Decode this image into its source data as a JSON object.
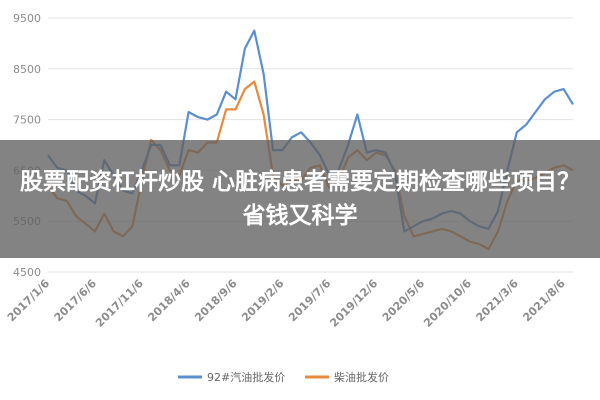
{
  "overlay": {
    "title": "股票配资杠杆炒股 心脏病患者需要定期检查哪些项目？省钱又科学"
  },
  "colors": {
    "series_92": "#5b8fd0",
    "series_diesel": "#e88a3c",
    "grid": "#e3e3e3",
    "axis_text": "#8c8c8c"
  },
  "chart_data": {
    "type": "line",
    "title": "",
    "xlabel": "",
    "ylabel": "",
    "ylim": [
      4500,
      9500
    ],
    "yticks": [
      4500,
      5500,
      6500,
      7500,
      8500,
      9500
    ],
    "ytick_labels": [
      "4500",
      "5500",
      "6500",
      "7500",
      "8500",
      "9500"
    ],
    "xtick_labels": [
      "2017/1/6",
      "2017/6/6",
      "2017/11/6",
      "2018/4/6",
      "2018/9/6",
      "2019/2/6",
      "2019/7/6",
      "2019/12/6",
      "2020/5/6",
      "2020/10/6",
      "2021/3/6",
      "2021/8/6"
    ],
    "x": [
      "2017/1/6",
      "2017/2/6",
      "2017/3/6",
      "2017/4/6",
      "2017/5/6",
      "2017/6/6",
      "2017/7/6",
      "2017/8/6",
      "2017/9/6",
      "2017/10/6",
      "2017/11/6",
      "2017/12/6",
      "2018/1/6",
      "2018/2/6",
      "2018/3/6",
      "2018/4/6",
      "2018/5/6",
      "2018/6/6",
      "2018/7/6",
      "2018/8/6",
      "2018/9/6",
      "2018/10/6",
      "2018/11/6",
      "2018/12/6",
      "2019/1/6",
      "2019/2/6",
      "2019/3/6",
      "2019/4/6",
      "2019/5/6",
      "2019/6/6",
      "2019/7/6",
      "2019/8/6",
      "2019/9/6",
      "2019/10/6",
      "2019/11/6",
      "2019/12/6",
      "2020/1/6",
      "2020/2/6",
      "2020/3/6",
      "2020/4/6",
      "2020/5/6",
      "2020/6/6",
      "2020/7/6",
      "2020/8/6",
      "2020/9/6",
      "2020/10/6",
      "2020/11/6",
      "2020/12/6",
      "2021/1/6",
      "2021/2/6",
      "2021/3/6",
      "2021/4/6",
      "2021/5/6",
      "2021/6/6",
      "2021/7/6",
      "2021/8/6",
      "2021/9/6"
    ],
    "series": [
      {
        "name": "92#汽油批发价",
        "values": [
          6800,
          6550,
          6500,
          6100,
          6000,
          5850,
          6700,
          6400,
          6100,
          6050,
          6500,
          7000,
          7000,
          6600,
          6600,
          7650,
          7550,
          7500,
          7600,
          8050,
          7900,
          8900,
          9250,
          8400,
          6900,
          6900,
          7150,
          7250,
          7050,
          6800,
          6400,
          6500,
          7000,
          7600,
          6850,
          6900,
          6850,
          6450,
          5300,
          5400,
          5500,
          5550,
          5650,
          5700,
          5650,
          5500,
          5400,
          5350,
          5700,
          6500,
          7250,
          7400,
          7650,
          7900,
          8050,
          8100,
          7800
        ]
      },
      {
        "name": "柴油批发价",
        "values": [
          6200,
          5950,
          5900,
          5600,
          5450,
          5300,
          5650,
          5300,
          5200,
          5400,
          6300,
          7100,
          6900,
          6500,
          6400,
          6900,
          6850,
          7050,
          7050,
          7700,
          7700,
          8100,
          8250,
          7600,
          6400,
          6200,
          6300,
          6300,
          6550,
          6600,
          6150,
          6300,
          6750,
          6900,
          6700,
          6850,
          6800,
          6500,
          5600,
          5200,
          5250,
          5300,
          5350,
          5300,
          5200,
          5100,
          5050,
          4950,
          5300,
          5900,
          6300,
          6300,
          6350,
          6450,
          6550,
          6600,
          6500
        ]
      }
    ],
    "legend_position": "bottom-center"
  }
}
